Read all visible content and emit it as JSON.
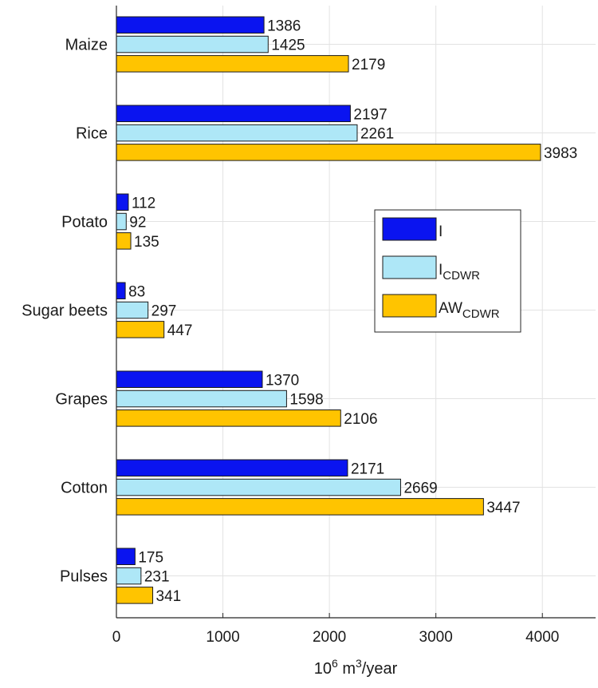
{
  "chart_data": {
    "type": "bar",
    "orientation": "horizontal",
    "categories": [
      "Maize",
      "Rice",
      "Potato",
      "Sugar beets",
      "Grapes",
      "Cotton",
      "Pulses"
    ],
    "series": [
      {
        "name": "I",
        "sub": "",
        "color": "#0a14f0",
        "values": [
          1386,
          2197,
          112,
          83,
          1370,
          2171,
          175
        ]
      },
      {
        "name": "I",
        "sub": "CDWR",
        "color": "#aee7f7",
        "values": [
          1425,
          2261,
          92,
          297,
          1598,
          2669,
          231
        ]
      },
      {
        "name": "AW",
        "sub": "CDWR",
        "color": "#ffc400",
        "values": [
          2179,
          3983,
          135,
          447,
          2106,
          3447,
          341
        ]
      }
    ],
    "xlabel": {
      "base": "10",
      "exp1": "6",
      "mid": " m",
      "exp2": "3",
      "tail": "/year"
    },
    "xlim": [
      0,
      4500
    ],
    "xticks": [
      0,
      1000,
      2000,
      3000,
      4000
    ],
    "grid": true,
    "legend_position": "right"
  }
}
